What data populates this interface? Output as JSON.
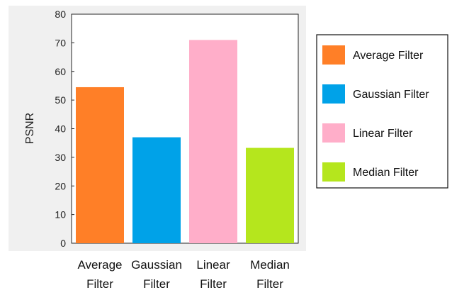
{
  "chart_data": {
    "type": "bar",
    "categories": [
      "Average Filter",
      "Gaussian Filter",
      "Linear Filter",
      "Median Filter"
    ],
    "category_lines": [
      [
        "Average",
        "Filter"
      ],
      [
        "Gaussian",
        "Filter"
      ],
      [
        "Linear",
        "Filter"
      ],
      [
        "Median",
        "Filter"
      ]
    ],
    "values": [
      54.5,
      37,
      71,
      33.3
    ],
    "colors": [
      "#FF7F27",
      "#00A2E8",
      "#FFAEC9",
      "#B5E61D"
    ],
    "title": "",
    "xlabel": "",
    "ylabel": "PSNR",
    "ylim": [
      0,
      80
    ],
    "yticks": [
      0,
      10,
      20,
      30,
      40,
      50,
      60,
      70,
      80
    ],
    "grid": false,
    "legend": {
      "placement": "right",
      "entries": [
        "Average Filter",
        "Gaussian Filter",
        "Linear Filter",
        "Median Filter"
      ]
    }
  }
}
